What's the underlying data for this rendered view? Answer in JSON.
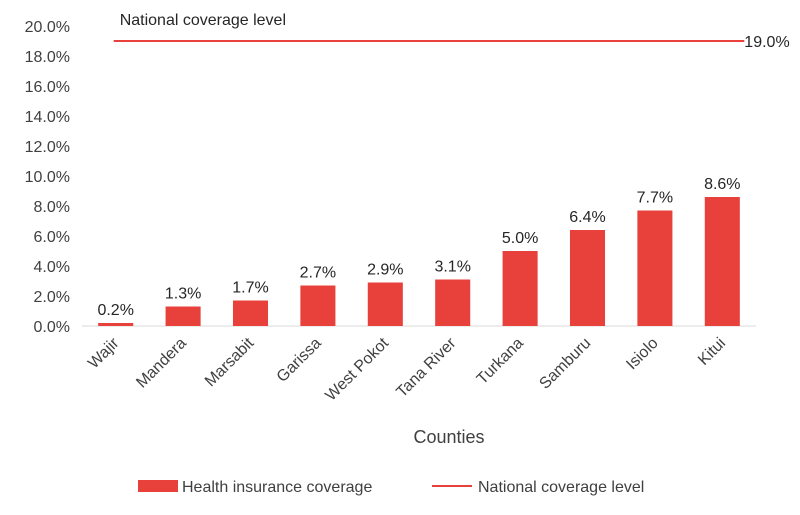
{
  "chart_data": {
    "type": "bar",
    "categories": [
      "Wajir",
      "Mandera",
      "Marsabit",
      "Garissa",
      "West Pokot",
      "Tana River",
      "Turkana",
      "Samburu",
      "Isiolo",
      "Kitui"
    ],
    "series": [
      {
        "name": "Health insurance coverage",
        "values": [
          0.2,
          1.3,
          1.7,
          2.7,
          2.9,
          3.1,
          5.0,
          6.4,
          7.7,
          8.6
        ],
        "labels": [
          "0.2%",
          "1.3%",
          "1.7%",
          "2.7%",
          "2.9%",
          "3.1%",
          "5.0%",
          "6.4%",
          "7.7%",
          "8.6%"
        ],
        "color": "#e8403a"
      }
    ],
    "reference_line": {
      "name": "National coverage level",
      "value": 19.0,
      "label": "19.0%",
      "annotation": "National coverage level",
      "color": "#e8403a"
    },
    "title": "",
    "xlabel": "Counties",
    "ylabel": "",
    "ylim": [
      0,
      20
    ],
    "yticks": [
      0,
      2,
      4,
      6,
      8,
      10,
      12,
      14,
      16,
      18,
      20
    ],
    "ytick_labels": [
      "0.0%",
      "2.0%",
      "4.0%",
      "6.0%",
      "8.0%",
      "10.0%",
      "12.0%",
      "14.0%",
      "16.0%",
      "18.0%",
      "20.0%"
    ],
    "grid": false,
    "legend": {
      "position": "bottom",
      "entries": [
        "Health insurance coverage",
        "National coverage level"
      ]
    }
  }
}
